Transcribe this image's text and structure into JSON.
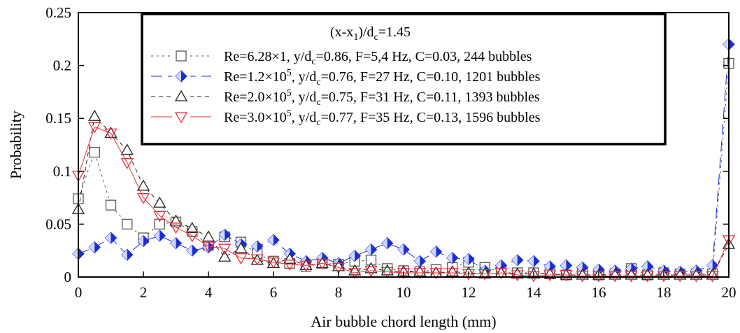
{
  "chart_data": {
    "type": "line",
    "title": "",
    "xlabel": "Air bubble chord length (mm)",
    "ylabel": "Probability",
    "xlim": [
      0,
      20
    ],
    "ylim": [
      0,
      0.25
    ],
    "x_ticks": [
      0,
      2,
      4,
      6,
      8,
      10,
      12,
      14,
      16,
      18,
      20
    ],
    "y_ticks": [
      0,
      0.05,
      0.1,
      0.15,
      0.2,
      0.25
    ],
    "x_tick_labels": [
      "0",
      "2",
      "4",
      "6",
      "8",
      "10",
      "12",
      "14",
      "16",
      "18",
      "20"
    ],
    "y_tick_labels": [
      "0",
      "0.05",
      "0.1",
      "0.15",
      "0.2",
      "0.25"
    ],
    "grid": false,
    "legend_position": "top-center",
    "legend_header": {
      "base": "(x-x",
      "sub1": "1",
      "mid": ")/d",
      "sub2": "c",
      "tail": "=1.45"
    },
    "x": [
      0,
      0.5,
      1,
      1.5,
      2,
      2.5,
      3,
      3.5,
      4,
      4.5,
      5,
      5.5,
      6,
      6.5,
      7,
      7.5,
      8,
      8.5,
      9,
      9.5,
      10,
      10.5,
      11,
      11.5,
      12,
      12.5,
      13,
      13.5,
      14,
      14.5,
      15,
      15.5,
      16,
      16.5,
      17,
      17.5,
      18,
      18.5,
      19,
      19.5,
      20
    ],
    "series": [
      {
        "legend": {
          "p1": "Re=6.28×1",
          "sup": "",
          "p2": ", y/d",
          "sub": "c",
          "p3": "=0.86, F=5,4 Hz, C=0.03, 244 bubbles"
        },
        "color": "#555555",
        "marker": "square",
        "line": "dotted",
        "values": [
          0.074,
          0.118,
          0.068,
          0.05,
          0.037,
          0.05,
          0.052,
          0.043,
          0.03,
          0.038,
          0.033,
          0.022,
          0.015,
          0.013,
          0.01,
          0.013,
          0.012,
          0.015,
          0.016,
          0.008,
          0.006,
          0.005,
          0.007,
          0.009,
          0.014,
          0.009,
          0.005,
          0.004,
          0.004,
          0.003,
          0.002,
          0.004,
          0.002,
          0.003,
          0.008,
          0.002,
          0.004,
          0.003,
          0.003,
          0.003,
          0.202
        ]
      },
      {
        "legend": {
          "p1": "Re=1.2×10",
          "sup": "5",
          "p2": ", y/d",
          "sub": "c",
          "p3": "=0.76, F=27 Hz, C=0.10, 1201 bubbles"
        },
        "color": "#1a2ed6",
        "marker": "diamond",
        "line": "long-dash",
        "values": [
          0.022,
          0.028,
          0.037,
          0.021,
          0.034,
          0.039,
          0.032,
          0.025,
          0.028,
          0.04,
          0.031,
          0.029,
          0.035,
          0.022,
          0.015,
          0.018,
          0.013,
          0.02,
          0.026,
          0.032,
          0.026,
          0.015,
          0.024,
          0.018,
          0.017,
          0.006,
          0.011,
          0.016,
          0.015,
          0.01,
          0.011,
          0.009,
          0.007,
          0.006,
          0.008,
          0.01,
          0.006,
          0.005,
          0.006,
          0.011,
          0.22
        ]
      },
      {
        "legend": {
          "p1": "Re=2.0×10",
          "sup": "5",
          "p2": ", y/d",
          "sub": "c",
          "p3": "=0.75, F=31 Hz, C=0.11, 1393 bubbles"
        },
        "color": "#222222",
        "marker": "triangle-up",
        "line": "dashed",
        "values": [
          0.064,
          0.152,
          0.136,
          0.12,
          0.086,
          0.07,
          0.053,
          0.046,
          0.038,
          0.019,
          0.027,
          0.016,
          0.013,
          0.017,
          0.011,
          0.013,
          0.01,
          0.006,
          0.008,
          0.006,
          0.005,
          0.005,
          0.004,
          0.005,
          0.004,
          0.003,
          0.004,
          0.003,
          0.003,
          0.003,
          0.002,
          0.002,
          0.002,
          0.002,
          0.002,
          0.002,
          0.002,
          0.002,
          0.002,
          0.002,
          0.031
        ]
      },
      {
        "legend": {
          "p1": "Re=3.0×10",
          "sup": "5",
          "p2": ", y/d",
          "sub": "c",
          "p3": "=0.77, F=35 Hz, C=0.13, 1596 bubbles"
        },
        "color": "#e8323a",
        "marker": "triangle-down",
        "line": "solid",
        "values": [
          0.096,
          0.142,
          0.136,
          0.108,
          0.075,
          0.058,
          0.047,
          0.039,
          0.029,
          0.027,
          0.018,
          0.017,
          0.014,
          0.012,
          0.011,
          0.013,
          0.009,
          0.004,
          0.006,
          0.005,
          0.004,
          0.004,
          0.004,
          0.004,
          0.003,
          0.003,
          0.004,
          0.002,
          0.001,
          0.002,
          0.002,
          0.001,
          0.001,
          0.001,
          0.001,
          0.001,
          0.001,
          0.001,
          0.001,
          0.001,
          0.035
        ]
      }
    ]
  }
}
